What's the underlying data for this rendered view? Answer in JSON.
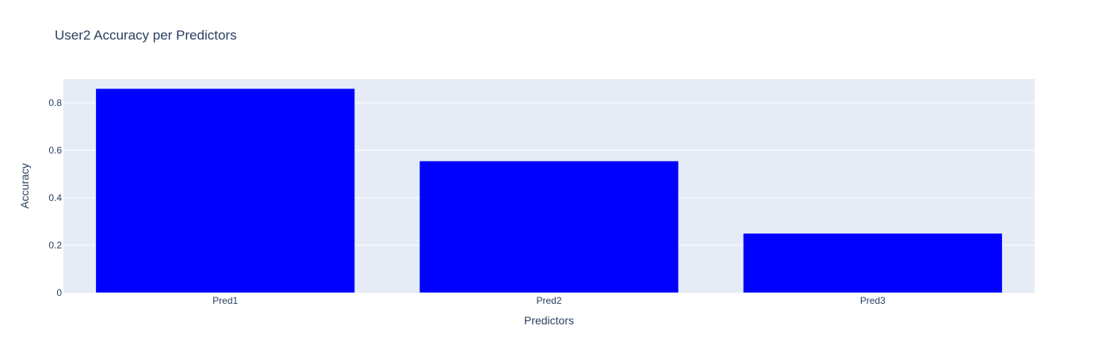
{
  "chart_data": {
    "type": "bar",
    "title": "User2 Accuracy per Predictors",
    "xlabel": "Predictors",
    "ylabel": "Accuracy",
    "categories": [
      "Pred1",
      "Pred2",
      "Pred3"
    ],
    "values": [
      0.86,
      0.555,
      0.25
    ],
    "ylim": [
      0,
      0.9
    ],
    "yticks": [
      0,
      0.2,
      0.4,
      0.6,
      0.8
    ],
    "ytick_labels": [
      "0",
      "0.2",
      "0.4",
      "0.6",
      "0.8"
    ],
    "grid": true,
    "colors": {
      "bar": "#0000ff",
      "plot_bg": "#e5ecf6",
      "grid": "#ffffff",
      "text": "#2a3f5f"
    }
  }
}
